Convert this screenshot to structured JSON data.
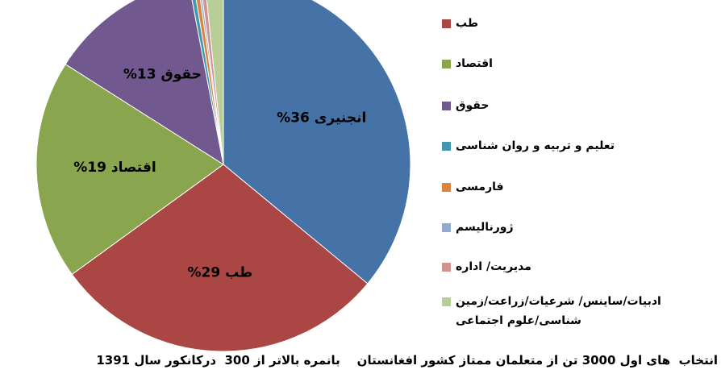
{
  "chart_data": {
    "type": "pie",
    "title": "انتخاب  های اول 3000 تن از متعلمان ممتاز کشور افغانستان    بانمره بالاتر از 300  درکانکور سال 1391",
    "categories": [
      "انجنیری",
      "طب",
      "اقتصاد",
      "حقوق",
      "تعلیم و تربیه و روان شناسی",
      "فارمسی",
      "ژورنالیسم",
      "مدیریت/ اداره",
      "ادبیات/ساینس/ شرعیات/زراعت/زمین شناسی/علوم اجتماعی"
    ],
    "values": [
      36,
      29,
      19,
      13,
      0.4,
      0.4,
      0.2,
      0.4,
      1.6
    ],
    "value_labels": [
      "انجنیری 36%",
      "طب 29%",
      "اقتصاد 19%",
      "حقوق 13%",
      null,
      null,
      null,
      null,
      null
    ],
    "colors": [
      "#4572A7",
      "#AA4643",
      "#89A54E",
      "#71588F",
      "#4198AF",
      "#DB843D",
      "#93A9CF",
      "#D19392",
      "#B9CD96"
    ],
    "legend_categories": [
      1,
      2,
      3,
      4,
      5,
      6,
      7,
      8
    ]
  }
}
